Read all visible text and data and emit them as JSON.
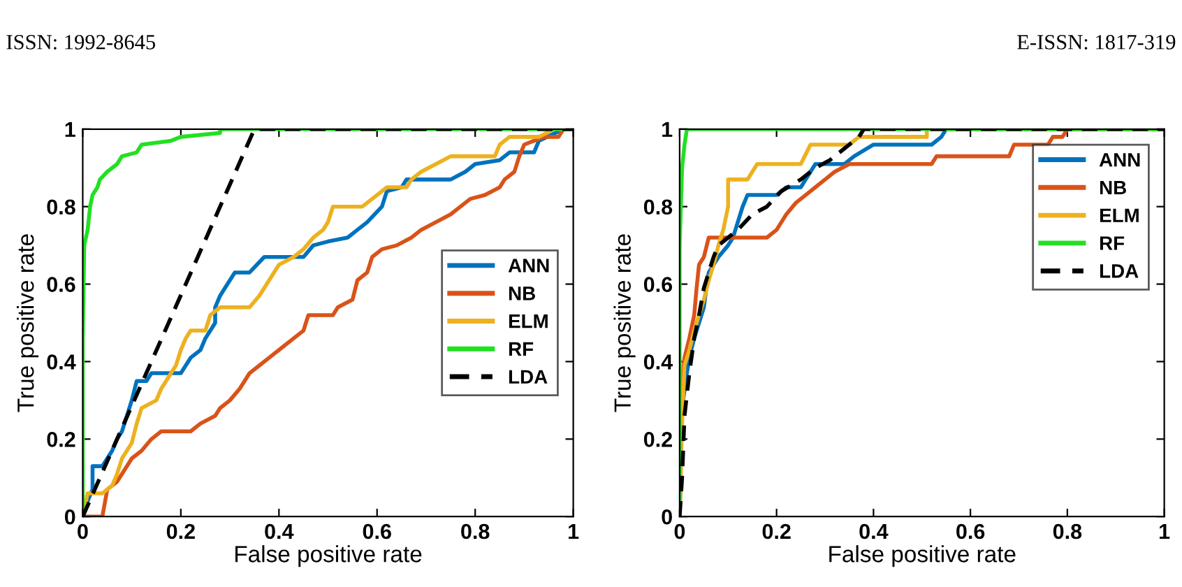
{
  "chart_data": [
    {
      "type": "line",
      "xlabel": "False positive rate",
      "ylabel": "True positive rate",
      "xlim": [
        0,
        1
      ],
      "ylim": [
        0,
        1
      ],
      "xticks": [
        0,
        0.2,
        0.4,
        0.6,
        0.8,
        1
      ],
      "yticks": [
        0,
        0.2,
        0.4,
        0.6,
        0.8,
        1
      ],
      "grid": false,
      "legend": "right",
      "annotations": [
        "ISSN: 1992-8645"
      ],
      "series": [
        {
          "name": "ANN",
          "color": "#0072bd",
          "x": [
            0,
            0.01,
            0.02,
            0.02,
            0.04,
            0.05,
            0.06,
            0.07,
            0.08,
            0.09,
            0.1,
            0.11,
            0.13,
            0.14,
            0.2,
            0.22,
            0.24,
            0.25,
            0.27,
            0.27,
            0.28,
            0.29,
            0.31,
            0.34,
            0.37,
            0.45,
            0.47,
            0.5,
            0.54,
            0.58,
            0.61,
            0.62,
            0.65,
            0.66,
            0.75,
            0.78,
            0.8,
            0.85,
            0.87,
            0.92,
            0.93,
            0.98,
            1
          ],
          "values": [
            0,
            0.04,
            0.07,
            0.13,
            0.13,
            0.15,
            0.17,
            0.2,
            0.22,
            0.26,
            0.3,
            0.35,
            0.35,
            0.37,
            0.37,
            0.41,
            0.43,
            0.46,
            0.5,
            0.54,
            0.57,
            0.59,
            0.63,
            0.63,
            0.67,
            0.67,
            0.7,
            0.71,
            0.72,
            0.76,
            0.8,
            0.84,
            0.85,
            0.87,
            0.87,
            0.89,
            0.91,
            0.92,
            0.94,
            0.94,
            0.97,
            1,
            1
          ]
        },
        {
          "name": "NB",
          "color": "#d95319",
          "x": [
            0,
            0.04,
            0.05,
            0.07,
            0.08,
            0.1,
            0.12,
            0.14,
            0.16,
            0.22,
            0.24,
            0.27,
            0.28,
            0.3,
            0.32,
            0.34,
            0.36,
            0.38,
            0.41,
            0.43,
            0.45,
            0.46,
            0.51,
            0.52,
            0.55,
            0.56,
            0.58,
            0.59,
            0.61,
            0.64,
            0.67,
            0.69,
            0.72,
            0.75,
            0.77,
            0.79,
            0.82,
            0.85,
            0.86,
            0.88,
            0.89,
            0.9,
            0.94,
            0.97,
            0.98,
            1
          ],
          "values": [
            0,
            0,
            0.07,
            0.09,
            0.11,
            0.15,
            0.17,
            0.2,
            0.22,
            0.22,
            0.24,
            0.26,
            0.28,
            0.3,
            0.33,
            0.37,
            0.39,
            0.41,
            0.44,
            0.46,
            0.48,
            0.52,
            0.52,
            0.54,
            0.56,
            0.61,
            0.63,
            0.67,
            0.69,
            0.7,
            0.72,
            0.74,
            0.76,
            0.78,
            0.8,
            0.82,
            0.83,
            0.85,
            0.87,
            0.89,
            0.93,
            0.96,
            0.98,
            0.98,
            1,
            1
          ]
        },
        {
          "name": "ELM",
          "color": "#edb120",
          "x": [
            0,
            0.01,
            0.04,
            0.06,
            0.07,
            0.08,
            0.1,
            0.11,
            0.12,
            0.15,
            0.16,
            0.17,
            0.18,
            0.19,
            0.2,
            0.21,
            0.22,
            0.25,
            0.26,
            0.28,
            0.34,
            0.36,
            0.38,
            0.4,
            0.43,
            0.45,
            0.47,
            0.49,
            0.5,
            0.51,
            0.57,
            0.59,
            0.62,
            0.66,
            0.67,
            0.69,
            0.72,
            0.75,
            0.84,
            0.85,
            0.87,
            0.93,
            0.96,
            1
          ],
          "values": [
            0,
            0.06,
            0.06,
            0.08,
            0.11,
            0.15,
            0.19,
            0.24,
            0.28,
            0.3,
            0.33,
            0.35,
            0.37,
            0.39,
            0.43,
            0.46,
            0.48,
            0.48,
            0.52,
            0.54,
            0.54,
            0.57,
            0.61,
            0.65,
            0.67,
            0.69,
            0.72,
            0.74,
            0.76,
            0.8,
            0.8,
            0.82,
            0.85,
            0.85,
            0.87,
            0.89,
            0.91,
            0.93,
            0.93,
            0.96,
            0.98,
            0.98,
            1,
            1
          ]
        },
        {
          "name": "RF",
          "color": "#22e022",
          "x": [
            0,
            0,
            0.003,
            0.01,
            0.015,
            0.02,
            0.03,
            0.035,
            0.05,
            0.07,
            0.08,
            0.11,
            0.12,
            0.18,
            0.2,
            0.28,
            0.28,
            1
          ],
          "values": [
            0,
            0.46,
            0.7,
            0.74,
            0.8,
            0.83,
            0.85,
            0.87,
            0.89,
            0.91,
            0.93,
            0.94,
            0.96,
            0.97,
            0.98,
            0.99,
            1,
            1
          ]
        },
        {
          "name": "LDA",
          "color": "#000000",
          "line_style": "dashed",
          "x": [
            0,
            0.35,
            1
          ],
          "values": [
            0,
            1,
            1
          ]
        }
      ]
    },
    {
      "type": "line",
      "xlabel": "False positive rate",
      "ylabel": "True positive rate",
      "xlim": [
        0,
        1
      ],
      "ylim": [
        0,
        1
      ],
      "xticks": [
        0,
        0.2,
        0.4,
        0.6,
        0.8,
        1
      ],
      "yticks": [
        0,
        0.2,
        0.4,
        0.6,
        0.8,
        1
      ],
      "grid": false,
      "legend": "top right",
      "annotations": [
        "E-ISSN: 1817-319"
      ],
      "series": [
        {
          "name": "ANN",
          "color": "#0072bd",
          "x": [
            0,
            0.005,
            0.015,
            0.02,
            0.03,
            0.04,
            0.05,
            0.055,
            0.06,
            0.07,
            0.08,
            0.1,
            0.11,
            0.12,
            0.13,
            0.14,
            0.2,
            0.22,
            0.25,
            0.26,
            0.28,
            0.34,
            0.36,
            0.4,
            0.52,
            0.54,
            0.55,
            1
          ],
          "values": [
            0,
            0.28,
            0.37,
            0.41,
            0.46,
            0.5,
            0.54,
            0.59,
            0.63,
            0.65,
            0.67,
            0.7,
            0.72,
            0.76,
            0.8,
            0.83,
            0.83,
            0.85,
            0.85,
            0.87,
            0.91,
            0.91,
            0.93,
            0.96,
            0.96,
            0.98,
            1,
            1
          ]
        },
        {
          "name": "NB",
          "color": "#d95319",
          "x": [
            0,
            0.005,
            0.01,
            0.02,
            0.03,
            0.035,
            0.04,
            0.05,
            0.06,
            0.18,
            0.2,
            0.21,
            0.22,
            0.24,
            0.26,
            0.28,
            0.3,
            0.32,
            0.35,
            0.52,
            0.53,
            0.68,
            0.69,
            0.76,
            0.77,
            0.79,
            0.8,
            1
          ],
          "values": [
            0,
            0.35,
            0.41,
            0.46,
            0.52,
            0.59,
            0.65,
            0.67,
            0.72,
            0.72,
            0.74,
            0.76,
            0.78,
            0.81,
            0.83,
            0.85,
            0.87,
            0.89,
            0.91,
            0.91,
            0.93,
            0.93,
            0.96,
            0.96,
            0.98,
            0.98,
            1,
            1
          ]
        },
        {
          "name": "ELM",
          "color": "#edb120",
          "x": [
            0,
            0.005,
            0.01,
            0.02,
            0.03,
            0.04,
            0.05,
            0.06,
            0.07,
            0.08,
            0.09,
            0.1,
            0.1,
            0.14,
            0.15,
            0.16,
            0.25,
            0.27,
            0.35,
            0.37,
            0.51,
            0.51,
            1
          ],
          "values": [
            0,
            0.24,
            0.39,
            0.43,
            0.48,
            0.52,
            0.56,
            0.61,
            0.65,
            0.7,
            0.74,
            0.8,
            0.87,
            0.87,
            0.89,
            0.91,
            0.91,
            0.96,
            0.96,
            0.98,
            0.98,
            1,
            1
          ]
        },
        {
          "name": "RF",
          "color": "#22e022",
          "x": [
            0,
            0,
            0.005,
            0.01,
            0.015,
            1
          ],
          "values": [
            0,
            0.7,
            0.9,
            0.96,
            1,
            1
          ]
        },
        {
          "name": "LDA",
          "color": "#000000",
          "line_style": "dashed",
          "x": [
            0,
            0.005,
            0.01,
            0.02,
            0.03,
            0.04,
            0.05,
            0.06,
            0.07,
            0.08,
            0.1,
            0.12,
            0.15,
            0.18,
            0.21,
            0.25,
            0.28,
            0.31,
            0.34,
            0.37,
            0.38,
            1
          ],
          "values": [
            0,
            0.1,
            0.26,
            0.37,
            0.46,
            0.52,
            0.59,
            0.63,
            0.67,
            0.7,
            0.72,
            0.74,
            0.78,
            0.8,
            0.84,
            0.87,
            0.9,
            0.92,
            0.95,
            0.98,
            1,
            1
          ]
        }
      ]
    }
  ]
}
